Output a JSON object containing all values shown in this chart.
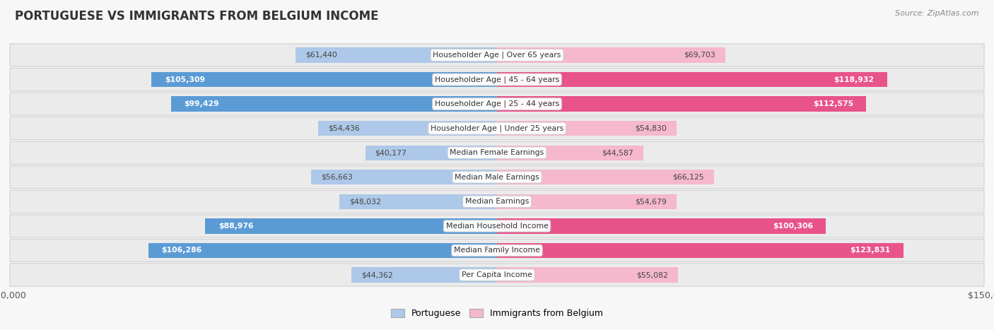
{
  "title": "PORTUGUESE VS IMMIGRANTS FROM BELGIUM INCOME",
  "source": "Source: ZipAtlas.com",
  "categories": [
    "Per Capita Income",
    "Median Family Income",
    "Median Household Income",
    "Median Earnings",
    "Median Male Earnings",
    "Median Female Earnings",
    "Householder Age | Under 25 years",
    "Householder Age | 25 - 44 years",
    "Householder Age | 45 - 64 years",
    "Householder Age | Over 65 years"
  ],
  "portuguese_values": [
    44362,
    106286,
    88976,
    48032,
    56663,
    40177,
    54436,
    99429,
    105309,
    61440
  ],
  "belgium_values": [
    55082,
    123831,
    100306,
    54679,
    66125,
    44587,
    54830,
    112575,
    118932,
    69703
  ],
  "portuguese_labels": [
    "$44,362",
    "$106,286",
    "$88,976",
    "$48,032",
    "$56,663",
    "$40,177",
    "$54,436",
    "$99,429",
    "$105,309",
    "$61,440"
  ],
  "belgium_labels": [
    "$55,082",
    "$123,831",
    "$100,306",
    "$54,679",
    "$66,125",
    "$44,587",
    "$54,830",
    "$112,575",
    "$118,932",
    "$69,703"
  ],
  "max_value": 150000,
  "portuguese_color_light": "#adc8e8",
  "portuguese_color_dark": "#5b9bd5",
  "belgium_color_light": "#f5b8cc",
  "belgium_color_dark": "#e8538a",
  "inside_label_threshold": 75000,
  "background_color": "#f7f7f7",
  "row_bg_color": "#e8e8e8",
  "legend_portuguese": "Portuguese",
  "legend_belgium": "Immigrants from Belgium",
  "bar_height": 0.62
}
